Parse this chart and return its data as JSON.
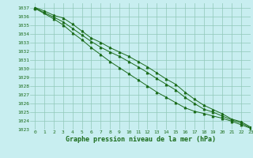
{
  "xlabel": "Graphe pression niveau de la mer (hPa)",
  "xlim": [
    -0.5,
    23
  ],
  "ylim": [
    1023,
    1037.5
  ],
  "yticks": [
    1023,
    1024,
    1025,
    1026,
    1027,
    1028,
    1029,
    1030,
    1031,
    1032,
    1033,
    1034,
    1035,
    1036,
    1037
  ],
  "xticks": [
    0,
    1,
    2,
    3,
    4,
    5,
    6,
    7,
    8,
    9,
    10,
    11,
    12,
    13,
    14,
    15,
    16,
    17,
    18,
    19,
    20,
    21,
    22,
    23
  ],
  "background_color": "#c8eef0",
  "grid_color": "#90c8b8",
  "line_color": "#1a6b1a",
  "marker": "^",
  "line1_x": [
    0,
    1,
    2,
    3,
    4,
    5,
    6,
    7,
    8,
    9,
    10,
    11,
    12,
    13,
    14,
    15,
    16,
    17,
    18,
    19,
    20,
    21,
    22,
    23
  ],
  "line1_y": [
    1037.0,
    1036.6,
    1036.1,
    1035.8,
    1035.1,
    1034.3,
    1033.5,
    1033.0,
    1032.4,
    1031.9,
    1031.4,
    1030.8,
    1030.2,
    1029.5,
    1028.8,
    1028.2,
    1027.3,
    1026.5,
    1025.8,
    1025.3,
    1024.8,
    1024.2,
    1023.9,
    1023.3
  ],
  "line2_x": [
    0,
    1,
    2,
    3,
    4,
    5,
    6,
    7,
    8,
    9,
    10,
    11,
    12,
    13,
    14,
    15,
    16,
    17,
    18,
    19,
    20,
    21,
    22,
    23
  ],
  "line2_y": [
    1036.95,
    1036.4,
    1035.9,
    1035.35,
    1034.6,
    1033.85,
    1033.1,
    1032.45,
    1031.9,
    1031.4,
    1030.8,
    1030.2,
    1029.55,
    1028.85,
    1028.2,
    1027.55,
    1026.7,
    1026.0,
    1025.35,
    1025.0,
    1024.55,
    1024.1,
    1023.75,
    1023.2
  ],
  "line3_x": [
    0,
    2,
    3,
    4,
    5,
    6,
    7,
    8,
    9,
    10,
    11,
    12,
    13,
    14,
    15,
    16,
    17,
    18,
    19,
    20,
    21,
    22,
    23
  ],
  "line3_y": [
    1036.9,
    1035.7,
    1035.0,
    1034.1,
    1033.3,
    1032.4,
    1031.6,
    1030.8,
    1030.1,
    1029.4,
    1028.7,
    1028.0,
    1027.3,
    1026.7,
    1026.1,
    1025.5,
    1025.1,
    1024.85,
    1024.55,
    1024.3,
    1023.95,
    1023.55,
    1023.15
  ],
  "tick_fontsize": 4.5,
  "label_fontsize": 6.0
}
